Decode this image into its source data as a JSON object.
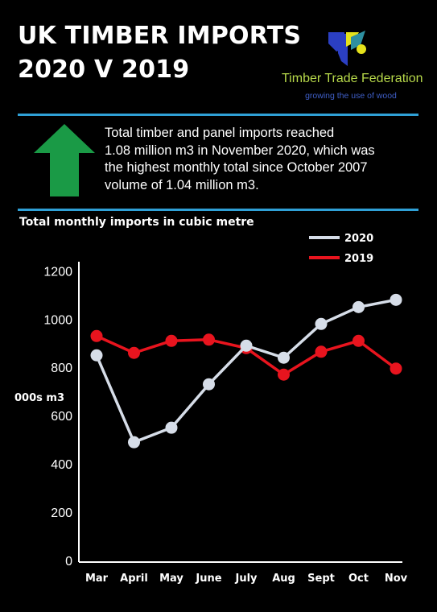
{
  "header": {
    "title_line1": "UK TIMBER IMPORTS",
    "title_line2": "2020 V 2019"
  },
  "brand": {
    "name": "Timber Trade Federation",
    "tagline": "growing the use of wood",
    "logo_icon": "ttf-logo-icon",
    "colors": {
      "blue": "#2b3fc2",
      "yellow": "#e5e21b",
      "teal": "#2d8fa0",
      "green": "#b7d94a"
    }
  },
  "summary": {
    "icon": "up-arrow-icon",
    "icon_color": "#1a9a46",
    "lines": [
      "Total timber and panel imports reached",
      "1.08 million m3 in November 2020, which was",
      "the highest monthly total since October 2007",
      "volume of 1.04 million m3."
    ]
  },
  "accent_rule_color": "#2fa0d6",
  "chart_data": {
    "type": "line",
    "title": "Total monthly imports in cubic metre",
    "xlabel": "",
    "ylabel": "000s m3",
    "categories": [
      "Mar",
      "April",
      "May",
      "June",
      "July",
      "Aug",
      "Sept",
      "Oct",
      "Nov"
    ],
    "ylim": [
      0,
      1200
    ],
    "yticks": [
      0,
      200,
      400,
      600,
      800,
      1000,
      1200
    ],
    "grid": false,
    "legend_position": "top-right",
    "series": [
      {
        "name": "2020",
        "color": "#d6dde8",
        "values": [
          850,
          490,
          550,
          730,
          890,
          840,
          980,
          1050,
          1080
        ]
      },
      {
        "name": "2019",
        "color": "#e8141e",
        "values": [
          930,
          860,
          910,
          915,
          880,
          770,
          865,
          910,
          795
        ]
      }
    ]
  }
}
